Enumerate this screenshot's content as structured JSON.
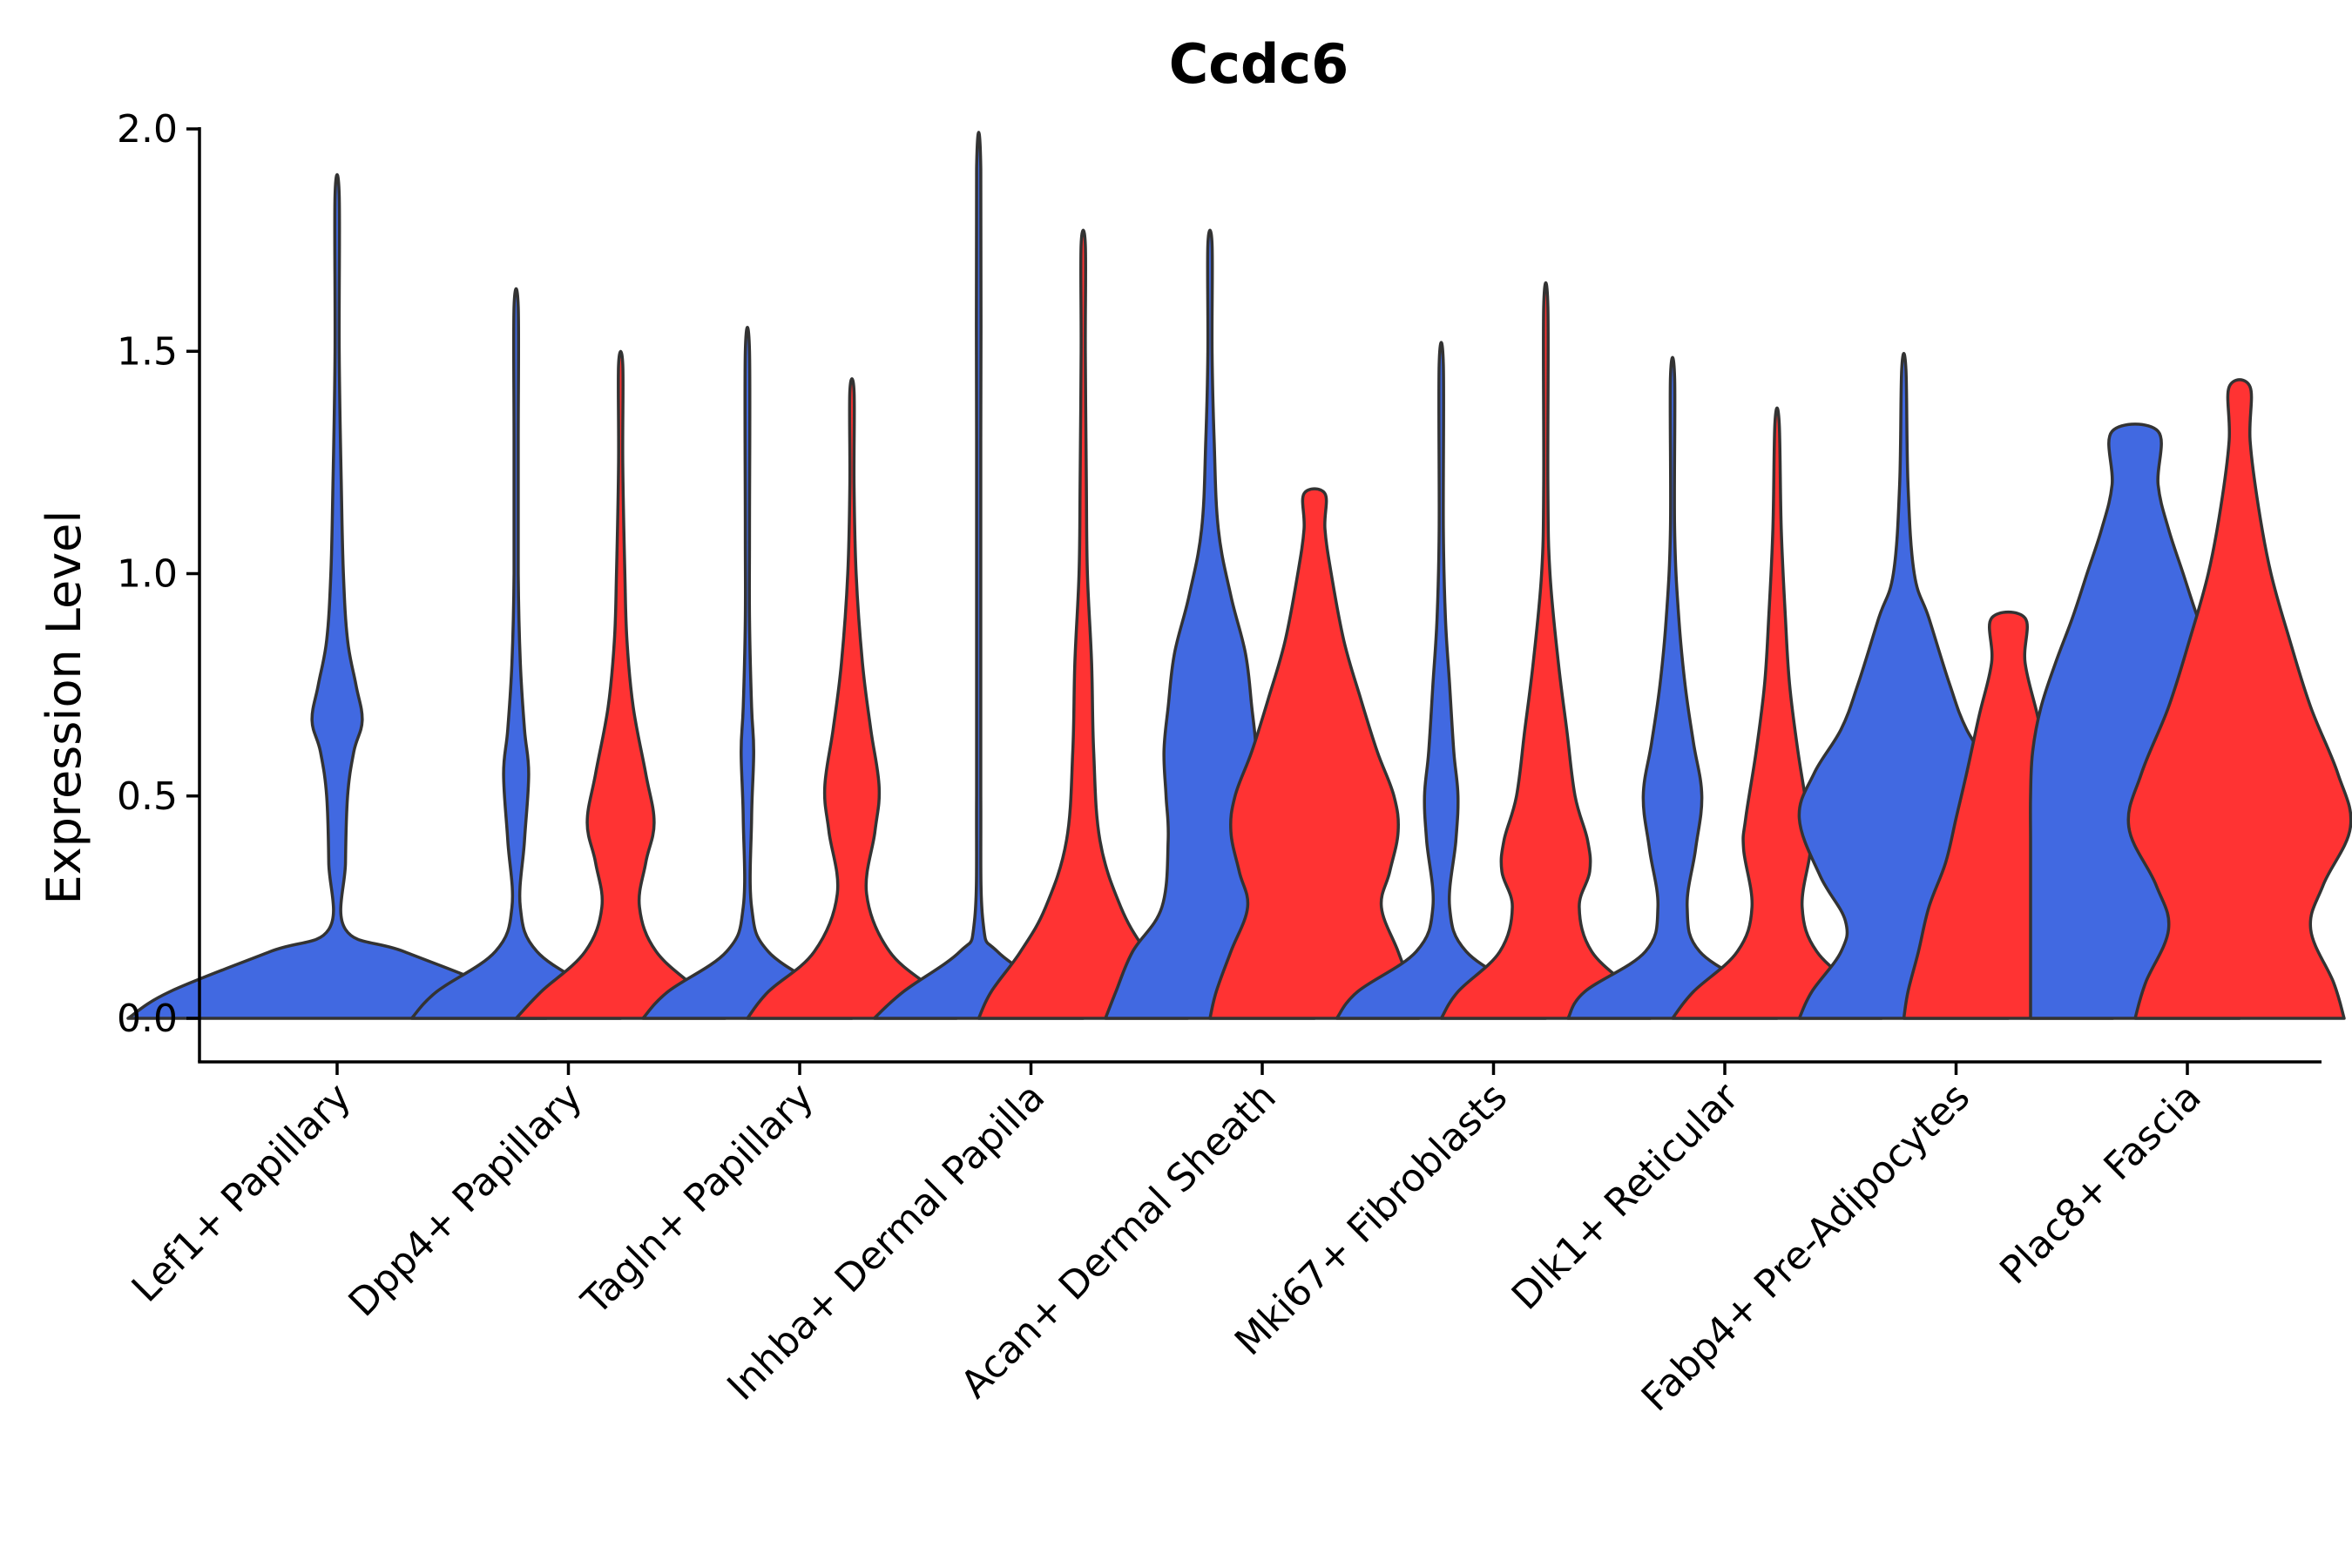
{
  "chart_data": {
    "type": "violin",
    "title": "Ccdc6",
    "xlabel": "",
    "ylabel": "Expression Level",
    "ylim": [
      -0.1,
      2.0
    ],
    "yticks": [
      "0.0",
      "0.5",
      "1.0",
      "1.5",
      "2.0"
    ],
    "ytick_values": [
      0.0,
      0.5,
      1.0,
      1.5,
      2.0
    ],
    "grid": false,
    "legend": "none",
    "colors": {
      "blue": "#4169E1",
      "red": "#FF3333"
    },
    "categories": [
      "Lef1+ Papillary",
      "Dpp4+ Papillary",
      "Tagln+ Papillary",
      "Inhba+ Dermal Papilla",
      "Acan+ Dermal Sheath",
      "Mki67+ Fibroblasts",
      "Dlk1+ Reticular",
      "Fabp4+ Pre-Adipocytes",
      "Plac8+ Fascia"
    ],
    "violins": [
      {
        "category": 0,
        "color": "blue",
        "max": 1.85,
        "profile": [
          [
            0,
            1.0
          ],
          [
            0.06,
            0.8
          ],
          [
            0.15,
            0.32
          ],
          [
            0.2,
            0.04
          ],
          [
            0.35,
            0.04
          ],
          [
            0.5,
            0.05
          ],
          [
            0.6,
            0.08
          ],
          [
            0.67,
            0.12
          ],
          [
            0.75,
            0.09
          ],
          [
            0.85,
            0.05
          ],
          [
            1.0,
            0.03
          ],
          [
            1.2,
            0.02
          ],
          [
            1.5,
            0.01
          ],
          [
            1.85,
            0.01
          ]
        ]
      },
      {
        "category": 1,
        "color": "blue",
        "max": 1.6,
        "profile": [
          [
            0,
            0.5
          ],
          [
            0.06,
            0.38
          ],
          [
            0.15,
            0.1
          ],
          [
            0.25,
            0.02
          ],
          [
            0.4,
            0.04
          ],
          [
            0.55,
            0.06
          ],
          [
            0.65,
            0.04
          ],
          [
            0.8,
            0.02
          ],
          [
            1.0,
            0.01
          ],
          [
            1.3,
            0.01
          ],
          [
            1.6,
            0.01
          ]
        ]
      },
      {
        "category": 1,
        "color": "red",
        "max": 1.47,
        "profile": [
          [
            0,
            0.5
          ],
          [
            0.06,
            0.38
          ],
          [
            0.15,
            0.17
          ],
          [
            0.25,
            0.09
          ],
          [
            0.35,
            0.12
          ],
          [
            0.44,
            0.16
          ],
          [
            0.55,
            0.12
          ],
          [
            0.7,
            0.06
          ],
          [
            0.85,
            0.03
          ],
          [
            1.0,
            0.02
          ],
          [
            1.25,
            0.01
          ],
          [
            1.47,
            0.01
          ]
        ]
      },
      {
        "category": 2,
        "color": "blue",
        "max": 1.5,
        "profile": [
          [
            0,
            0.5
          ],
          [
            0.06,
            0.38
          ],
          [
            0.15,
            0.1
          ],
          [
            0.25,
            0.02
          ],
          [
            0.45,
            0.02
          ],
          [
            0.6,
            0.03
          ],
          [
            0.7,
            0.02
          ],
          [
            0.9,
            0.01
          ],
          [
            1.1,
            0.01
          ],
          [
            1.5,
            0.01
          ]
        ]
      },
      {
        "category": 2,
        "color": "red",
        "max": 1.41,
        "profile": [
          [
            0,
            0.5
          ],
          [
            0.06,
            0.4
          ],
          [
            0.15,
            0.18
          ],
          [
            0.28,
            0.07
          ],
          [
            0.42,
            0.11
          ],
          [
            0.52,
            0.13
          ],
          [
            0.65,
            0.09
          ],
          [
            0.8,
            0.05
          ],
          [
            1.0,
            0.02
          ],
          [
            1.2,
            0.01
          ],
          [
            1.41,
            0.01
          ]
        ]
      },
      {
        "category": 3,
        "color": "blue",
        "max": 1.91,
        "profile": [
          [
            0,
            0.5
          ],
          [
            0.06,
            0.36
          ],
          [
            0.15,
            0.09
          ],
          [
            0.22,
            0.02
          ],
          [
            0.5,
            0.01
          ],
          [
            0.9,
            0.01
          ],
          [
            1.3,
            0.01
          ],
          [
            1.91,
            0.01
          ]
        ]
      },
      {
        "category": 3,
        "color": "red",
        "max": 1.74,
        "profile": [
          [
            0,
            0.5
          ],
          [
            0.06,
            0.44
          ],
          [
            0.15,
            0.3
          ],
          [
            0.25,
            0.18
          ],
          [
            0.4,
            0.08
          ],
          [
            0.6,
            0.05
          ],
          [
            0.8,
            0.04
          ],
          [
            1.0,
            0.02
          ],
          [
            1.2,
            0.015
          ],
          [
            1.5,
            0.01
          ],
          [
            1.74,
            0.01
          ]
        ]
      },
      {
        "category": 4,
        "color": "blue",
        "max": 1.74,
        "profile": [
          [
            0,
            0.5
          ],
          [
            0.06,
            0.45
          ],
          [
            0.15,
            0.37
          ],
          [
            0.25,
            0.23
          ],
          [
            0.4,
            0.2
          ],
          [
            0.5,
            0.21
          ],
          [
            0.6,
            0.22
          ],
          [
            0.7,
            0.2
          ],
          [
            0.82,
            0.17
          ],
          [
            0.95,
            0.1
          ],
          [
            1.1,
            0.04
          ],
          [
            1.3,
            0.02
          ],
          [
            1.5,
            0.01
          ],
          [
            1.74,
            0.01
          ]
        ]
      },
      {
        "category": 4,
        "color": "red",
        "max": 1.18,
        "profile": [
          [
            0,
            0.5
          ],
          [
            0.06,
            0.47
          ],
          [
            0.15,
            0.4
          ],
          [
            0.25,
            0.32
          ],
          [
            0.33,
            0.36
          ],
          [
            0.42,
            0.4
          ],
          [
            0.5,
            0.38
          ],
          [
            0.6,
            0.3
          ],
          [
            0.72,
            0.22
          ],
          [
            0.85,
            0.14
          ],
          [
            1.0,
            0.08
          ],
          [
            1.1,
            0.05
          ],
          [
            1.18,
            0.05
          ]
        ]
      },
      {
        "category": 5,
        "color": "blue",
        "max": 1.47,
        "profile": [
          [
            0,
            0.5
          ],
          [
            0.06,
            0.4
          ],
          [
            0.15,
            0.12
          ],
          [
            0.25,
            0.04
          ],
          [
            0.4,
            0.07
          ],
          [
            0.5,
            0.08
          ],
          [
            0.6,
            0.06
          ],
          [
            0.75,
            0.04
          ],
          [
            0.9,
            0.02
          ],
          [
            1.1,
            0.01
          ],
          [
            1.47,
            0.01
          ]
        ]
      },
      {
        "category": 5,
        "color": "red",
        "max": 1.6,
        "profile": [
          [
            0,
            0.5
          ],
          [
            0.06,
            0.42
          ],
          [
            0.15,
            0.22
          ],
          [
            0.25,
            0.16
          ],
          [
            0.33,
            0.21
          ],
          [
            0.4,
            0.2
          ],
          [
            0.5,
            0.14
          ],
          [
            0.65,
            0.1
          ],
          [
            0.8,
            0.06
          ],
          [
            1.0,
            0.02
          ],
          [
            1.2,
            0.01
          ],
          [
            1.6,
            0.01
          ]
        ]
      },
      {
        "category": 6,
        "color": "blue",
        "max": 1.44,
        "profile": [
          [
            0,
            0.5
          ],
          [
            0.06,
            0.42
          ],
          [
            0.15,
            0.13
          ],
          [
            0.25,
            0.07
          ],
          [
            0.38,
            0.11
          ],
          [
            0.5,
            0.14
          ],
          [
            0.62,
            0.1
          ],
          [
            0.75,
            0.06
          ],
          [
            0.9,
            0.03
          ],
          [
            1.1,
            0.01
          ],
          [
            1.44,
            0.01
          ]
        ]
      },
      {
        "category": 6,
        "color": "red",
        "max": 1.34,
        "profile": [
          [
            0,
            0.5
          ],
          [
            0.06,
            0.4
          ],
          [
            0.15,
            0.19
          ],
          [
            0.25,
            0.12
          ],
          [
            0.38,
            0.16
          ],
          [
            0.45,
            0.15
          ],
          [
            0.6,
            0.1
          ],
          [
            0.75,
            0.06
          ],
          [
            0.9,
            0.04
          ],
          [
            1.1,
            0.02
          ],
          [
            1.34,
            0.01
          ]
        ]
      },
      {
        "category": 7,
        "color": "blue",
        "max": 1.46,
        "profile": [
          [
            0,
            0.5
          ],
          [
            0.06,
            0.44
          ],
          [
            0.15,
            0.3
          ],
          [
            0.22,
            0.28
          ],
          [
            0.32,
            0.4
          ],
          [
            0.45,
            0.5
          ],
          [
            0.55,
            0.43
          ],
          [
            0.65,
            0.3
          ],
          [
            0.75,
            0.22
          ],
          [
            0.9,
            0.12
          ],
          [
            1.0,
            0.05
          ],
          [
            1.2,
            0.02
          ],
          [
            1.46,
            0.01
          ]
        ]
      },
      {
        "category": 7,
        "color": "red",
        "max": 0.9,
        "profile": [
          [
            0,
            0.5
          ],
          [
            0.06,
            0.48
          ],
          [
            0.15,
            0.43
          ],
          [
            0.25,
            0.38
          ],
          [
            0.35,
            0.3
          ],
          [
            0.45,
            0.25
          ],
          [
            0.55,
            0.2
          ],
          [
            0.68,
            0.14
          ],
          [
            0.8,
            0.08
          ],
          [
            0.9,
            0.08
          ]
        ]
      },
      {
        "category": 8,
        "color": "blue",
        "max": 1.32,
        "profile": [
          [
            0,
            0.5
          ],
          [
            0.1,
            0.5
          ],
          [
            0.2,
            0.5
          ],
          [
            0.3,
            0.5
          ],
          [
            0.4,
            0.5
          ],
          [
            0.5,
            0.5
          ],
          [
            0.6,
            0.49
          ],
          [
            0.7,
            0.45
          ],
          [
            0.8,
            0.38
          ],
          [
            0.9,
            0.3
          ],
          [
            1.0,
            0.23
          ],
          [
            1.1,
            0.16
          ],
          [
            1.2,
            0.11
          ],
          [
            1.32,
            0.11
          ]
        ]
      },
      {
        "category": 8,
        "color": "red",
        "max": 1.42,
        "profile": [
          [
            0,
            0.5
          ],
          [
            0.08,
            0.45
          ],
          [
            0.2,
            0.34
          ],
          [
            0.3,
            0.4
          ],
          [
            0.43,
            0.53
          ],
          [
            0.55,
            0.47
          ],
          [
            0.7,
            0.34
          ],
          [
            0.85,
            0.24
          ],
          [
            1.0,
            0.15
          ],
          [
            1.15,
            0.09
          ],
          [
            1.3,
            0.05
          ],
          [
            1.42,
            0.05
          ]
        ]
      }
    ]
  }
}
